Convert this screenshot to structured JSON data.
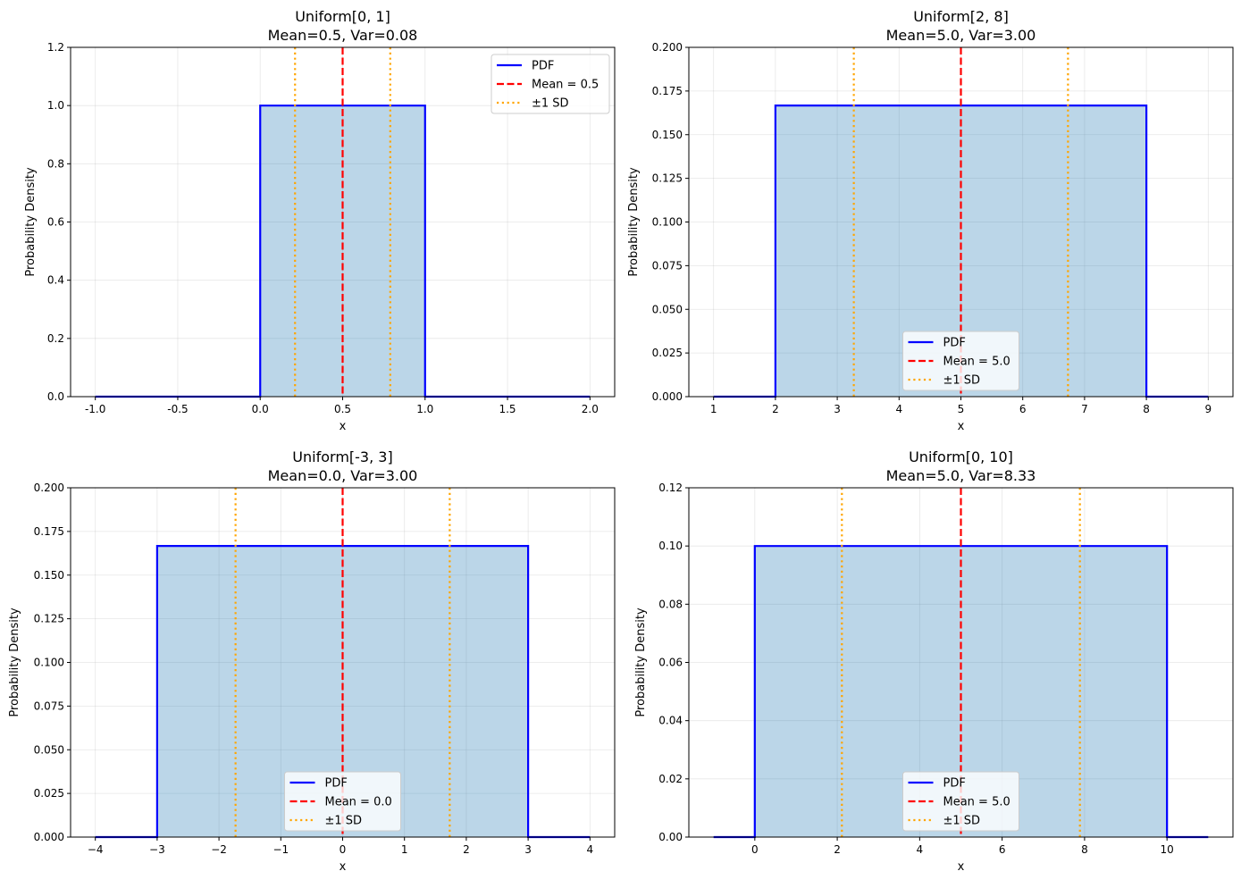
{
  "chart_data": [
    {
      "type": "line",
      "title": "Uniform[0, 1]",
      "subtitle": "Mean=0.5, Var=0.08",
      "xlabel": "x",
      "ylabel": "Probability Density",
      "a": 0,
      "b": 1,
      "density": 1.0,
      "x_range": [
        -1,
        2
      ],
      "mean": 0.5,
      "sd": 0.2887,
      "xlim": [
        -1.15,
        2.15
      ],
      "ylim": [
        0,
        1.2
      ],
      "xticks": [
        "-1.0",
        "-0.5",
        "0.0",
        "0.5",
        "1.0",
        "1.5",
        "2.0"
      ],
      "xtick_values": [
        -1,
        -0.5,
        0,
        0.5,
        1,
        1.5,
        2
      ],
      "yticks": [
        "0.0",
        "0.2",
        "0.4",
        "0.6",
        "0.8",
        "1.0",
        "1.2"
      ],
      "ytick_values": [
        0,
        0.2,
        0.4,
        0.6,
        0.8,
        1.0,
        1.2
      ],
      "legend": {
        "position": "upper right",
        "entries": [
          "PDF",
          "Mean = 0.5",
          "±1 SD"
        ]
      },
      "grid": true
    },
    {
      "type": "line",
      "title": "Uniform[2, 8]",
      "subtitle": "Mean=5.0, Var=3.00",
      "xlabel": "x",
      "ylabel": "Probability Density",
      "a": 2,
      "b": 8,
      "density": 0.1667,
      "x_range": [
        1,
        9
      ],
      "mean": 5.0,
      "sd": 1.732,
      "xlim": [
        0.6,
        9.4
      ],
      "ylim": [
        0,
        0.2
      ],
      "xticks": [
        "1",
        "2",
        "3",
        "4",
        "5",
        "6",
        "7",
        "8",
        "9"
      ],
      "xtick_values": [
        1,
        2,
        3,
        4,
        5,
        6,
        7,
        8,
        9
      ],
      "yticks": [
        "0.000",
        "0.025",
        "0.050",
        "0.075",
        "0.100",
        "0.125",
        "0.150",
        "0.175",
        "0.200"
      ],
      "ytick_values": [
        0,
        0.025,
        0.05,
        0.075,
        0.1,
        0.125,
        0.15,
        0.175,
        0.2
      ],
      "legend": {
        "position": "lower center",
        "entries": [
          "PDF",
          "Mean = 5.0",
          "±1 SD"
        ]
      },
      "grid": true
    },
    {
      "type": "line",
      "title": "Uniform[-3, 3]",
      "subtitle": "Mean=0.0, Var=3.00",
      "xlabel": "x",
      "ylabel": "Probability Density",
      "a": -3,
      "b": 3,
      "density": 0.1667,
      "x_range": [
        -4,
        4
      ],
      "mean": 0.0,
      "sd": 1.732,
      "xlim": [
        -4.4,
        4.4
      ],
      "ylim": [
        0,
        0.2
      ],
      "xticks": [
        "−4",
        "−3",
        "−2",
        "−1",
        "0",
        "1",
        "2",
        "3",
        "4"
      ],
      "xtick_values": [
        -4,
        -3,
        -2,
        -1,
        0,
        1,
        2,
        3,
        4
      ],
      "yticks": [
        "0.000",
        "0.025",
        "0.050",
        "0.075",
        "0.100",
        "0.125",
        "0.150",
        "0.175",
        "0.200"
      ],
      "ytick_values": [
        0,
        0.025,
        0.05,
        0.075,
        0.1,
        0.125,
        0.15,
        0.175,
        0.2
      ],
      "legend": {
        "position": "lower center",
        "entries": [
          "PDF",
          "Mean = 0.0",
          "±1 SD"
        ]
      },
      "grid": true
    },
    {
      "type": "line",
      "title": "Uniform[0, 10]",
      "subtitle": "Mean=5.0, Var=8.33",
      "xlabel": "x",
      "ylabel": "Probability Density",
      "a": 0,
      "b": 10,
      "density": 0.1,
      "x_range": [
        -1,
        11
      ],
      "mean": 5.0,
      "sd": 2.887,
      "xlim": [
        -1.6,
        11.6
      ],
      "ylim": [
        0,
        0.12
      ],
      "xticks": [
        "0",
        "2",
        "4",
        "6",
        "8",
        "10"
      ],
      "xtick_values": [
        0,
        2,
        4,
        6,
        8,
        10
      ],
      "yticks": [
        "0.00",
        "0.02",
        "0.04",
        "0.06",
        "0.08",
        "0.10",
        "0.12"
      ],
      "ytick_values": [
        0,
        0.02,
        0.04,
        0.06,
        0.08,
        0.1,
        0.12
      ],
      "legend": {
        "position": "lower center",
        "entries": [
          "PDF",
          "Mean = 5.0",
          "±1 SD"
        ]
      },
      "grid": true
    }
  ],
  "colors": {
    "pdf": "#0000ff",
    "fill": "#1f77b4",
    "mean": "#ff0000",
    "sd": "#ffa500",
    "grid": "#b0b0b0"
  }
}
